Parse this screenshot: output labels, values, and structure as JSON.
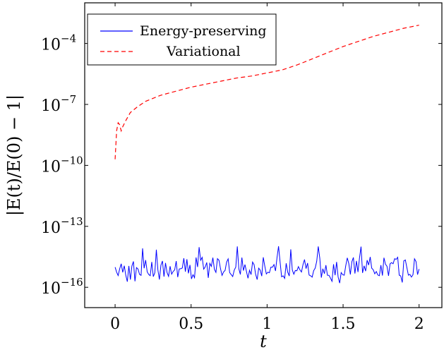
{
  "chart_data": {
    "type": "line",
    "xlabel": "t",
    "ylabel": "|E(t)/E(0) − 1|",
    "xlim": [
      -0.2,
      2.15
    ],
    "ylim": [
      -17,
      -2
    ],
    "yscale": "log",
    "x_ticks": [
      0,
      0.5,
      1,
      1.5,
      2
    ],
    "x_tick_labels": [
      "0",
      "0.5",
      "1",
      "1.5",
      "2"
    ],
    "y_ticks": [
      -16,
      -13,
      -10,
      -7,
      -4
    ],
    "y_tick_base": "10",
    "y_tick_exponents": [
      "−16",
      "−13",
      "−10",
      "−7",
      "−4"
    ],
    "grid": false,
    "legend_position": "top-left",
    "series": [
      {
        "name": "Energy-preserving",
        "color": "#0000ff",
        "dash": "solid",
        "note": "noisy around machine precision (~1e-14.5 to 1e-15.7)",
        "x_range": [
          0,
          2
        ],
        "n_points": 200,
        "log10_min": -15.8,
        "log10_max": -14.05
      },
      {
        "name": "Variational",
        "color": "#ff0000",
        "dash": "dashed",
        "x": [
          0,
          0.005,
          0.01,
          0.02,
          0.03,
          0.04,
          0.05,
          0.07,
          0.1,
          0.15,
          0.2,
          0.3,
          0.4,
          0.5,
          0.6,
          0.7,
          0.8,
          0.9,
          1.0,
          1.1,
          1.2,
          1.3,
          1.4,
          1.5,
          1.6,
          1.7,
          1.8,
          1.9,
          2.0
        ],
        "log10_y": [
          -9.7,
          -9.0,
          -8.3,
          -7.9,
          -8.0,
          -8.3,
          -8.1,
          -7.8,
          -7.4,
          -7.1,
          -6.85,
          -6.55,
          -6.35,
          -6.15,
          -6.0,
          -5.85,
          -5.7,
          -5.6,
          -5.45,
          -5.3,
          -5.05,
          -4.75,
          -4.45,
          -4.15,
          -3.9,
          -3.65,
          -3.45,
          -3.25,
          -3.1
        ]
      }
    ]
  }
}
